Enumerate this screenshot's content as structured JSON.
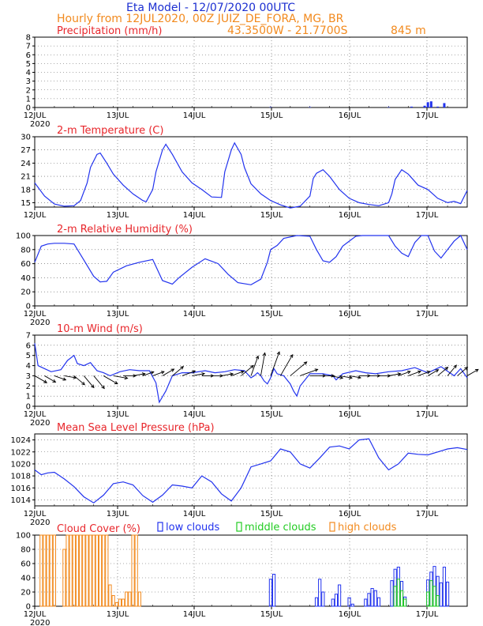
{
  "header": {
    "line1": "Eta Model - 12/07/2020 00UTC",
    "line2": "Hourly from 12JUL2020, 00Z  JUIZ_DE_FORA, MG, BR",
    "coords": "43.3500W - 21.7700S",
    "elevation": "845  m"
  },
  "colors": {
    "title_blue": "#1c2fd1",
    "header_orange": "#f28a1e",
    "panel_red": "#e8262b",
    "series_blue": "#2233ee",
    "low_cloud": "#2233ee",
    "mid_cloud": "#22cc22",
    "high_cloud": "#f28a1e"
  },
  "x_axis": {
    "day_labels": [
      "12JUL",
      "13JUL",
      "14JUL",
      "15JUL",
      "16JUL",
      "17JUL"
    ],
    "year_label": "2020",
    "hours_total": 132
  },
  "chart_data": [
    {
      "type": "bar",
      "title": "Precipitation (mm/h)",
      "ylim": [
        0,
        8
      ],
      "yticks": [
        0,
        1,
        2,
        3,
        4,
        5,
        6,
        7,
        8
      ],
      "x_hours": [
        72,
        84,
        108,
        115,
        119,
        120,
        121,
        123,
        125
      ],
      "values": [
        0.05,
        0.05,
        0.05,
        0.1,
        0.2,
        0.6,
        0.7,
        0.1,
        0.5
      ]
    },
    {
      "type": "line",
      "title": "2-m Temperature (C)",
      "ylim": [
        14,
        30
      ],
      "yticks": [
        15,
        18,
        21,
        24,
        27,
        30
      ],
      "x_hours": [
        0,
        3,
        6,
        9,
        12,
        14,
        16,
        17,
        19,
        20,
        22,
        24,
        27,
        30,
        33,
        34,
        36,
        37,
        39,
        40,
        42,
        45,
        48,
        51,
        54,
        57,
        58,
        60,
        61,
        63,
        64,
        66,
        69,
        72,
        75,
        78,
        81,
        84,
        85,
        86,
        88,
        90,
        93,
        96,
        99,
        102,
        105,
        108,
        109,
        110,
        112,
        114,
        117,
        120,
        123,
        126,
        128,
        130,
        132
      ],
      "values": [
        19.5,
        16.5,
        14.7,
        14.2,
        14.3,
        15.5,
        19.5,
        23,
        26,
        26.3,
        24,
        21.5,
        19,
        17,
        15.5,
        15.2,
        18,
        22,
        27,
        28.3,
        26,
        22,
        19.5,
        18,
        16.3,
        16.2,
        22,
        27,
        28.6,
        26,
        23,
        19.3,
        17,
        15.5,
        14.5,
        13.8,
        14.2,
        16.5,
        20.5,
        21.7,
        22.5,
        21,
        18,
        16,
        15,
        14.6,
        14.3,
        15,
        17,
        20.3,
        22.5,
        21.5,
        19,
        18,
        16,
        15,
        15.3,
        14.8,
        17.8
      ]
    },
    {
      "type": "line",
      "title": "2-m Relative Humidity (%)",
      "ylim": [
        0,
        100
      ],
      "yticks": [
        0,
        20,
        40,
        60,
        80,
        100
      ],
      "x_hours": [
        0,
        2,
        4,
        6,
        9,
        12,
        15,
        18,
        20,
        22,
        24,
        28,
        32,
        36,
        39,
        42,
        44,
        48,
        52,
        56,
        59,
        62,
        66,
        69,
        71,
        72,
        74,
        76,
        80,
        84,
        86,
        88,
        90,
        92,
        94,
        96,
        98,
        100,
        102,
        104,
        108,
        110,
        112,
        114,
        116,
        118,
        120,
        122,
        124,
        126,
        128,
        130,
        132
      ],
      "values": [
        62,
        85,
        88,
        89,
        89,
        88,
        65,
        42,
        34,
        35,
        48,
        57,
        62,
        66,
        36,
        31,
        40,
        55,
        67,
        60,
        45,
        33,
        30,
        38,
        62,
        80,
        86,
        96,
        100,
        99,
        80,
        64,
        62,
        70,
        85,
        92,
        99,
        100,
        100,
        100,
        100,
        85,
        75,
        70,
        90,
        100,
        100,
        78,
        68,
        80,
        92,
        100,
        80
      ]
    },
    {
      "type": "line",
      "title": "10-m Wind (m/s)",
      "ylim": [
        0,
        7
      ],
      "yticks": [
        0,
        1,
        2,
        3,
        4,
        5,
        6,
        7
      ],
      "x_hours": [
        0,
        1,
        3,
        5,
        8,
        10,
        12,
        13,
        15,
        17,
        19,
        21,
        23,
        26,
        29,
        32,
        35,
        37,
        38,
        40,
        42,
        45,
        48,
        52,
        55,
        58,
        61,
        64,
        66,
        67,
        68,
        69,
        70,
        71,
        72,
        73,
        74,
        76,
        78,
        79,
        80,
        81,
        84,
        88,
        91,
        92,
        94,
        98,
        101,
        104,
        108,
        112,
        116,
        120,
        124,
        128,
        130,
        132
      ],
      "values": [
        6.2,
        4,
        3.7,
        3.4,
        3.6,
        4.5,
        5.0,
        4.2,
        4.0,
        4.3,
        3.5,
        3.3,
        3.0,
        3.4,
        3.6,
        3.5,
        3.5,
        2.3,
        0.4,
        1.5,
        3.0,
        3.3,
        3.3,
        3.5,
        3.3,
        3.4,
        3.6,
        3.5,
        2.8,
        3.0,
        3.3,
        3.0,
        2.5,
        2.2,
        2.8,
        3.7,
        3.2,
        3.0,
        2.2,
        1.5,
        1.0,
        2.0,
        3.2,
        3.2,
        3.0,
        2.6,
        3.2,
        3.5,
        3.3,
        3.2,
        3.4,
        3.5,
        3.8,
        3.3,
        3.9,
        3.0,
        3.7,
        2.8
      ],
      "barbs": {
        "x_hours": [
          0,
          3,
          6,
          9,
          12,
          15,
          18,
          21,
          24,
          27,
          30,
          33,
          36,
          39,
          42,
          45,
          48,
          51,
          54,
          57,
          60,
          63,
          66,
          69,
          72,
          75,
          78,
          81,
          84,
          87,
          90,
          93,
          96,
          99,
          102,
          105,
          108,
          111,
          114,
          117,
          120,
          123,
          126,
          129,
          132
        ],
        "speeds": [
          2.5,
          2.3,
          2.2,
          2.2,
          2.5,
          2.8,
          3.0,
          2.9,
          2.6,
          2.3,
          2.2,
          2.1,
          2.2,
          2.4,
          2.6,
          2.5,
          2.3,
          2.1,
          2.0,
          2.1,
          2.4,
          2.9,
          3.8,
          4.2,
          4.6,
          4.4,
          3.9,
          3.4,
          2.8,
          2.6,
          2.4,
          2.3,
          2.1,
          2.0,
          2.0,
          2.1,
          2.2,
          2.3,
          2.4,
          2.3,
          2.2,
          2.4,
          2.5,
          2.4,
          2.3
        ],
        "directions_deg": [
          300,
          300,
          290,
          280,
          310,
          320,
          320,
          300,
          280,
          270,
          260,
          250,
          250,
          240,
          230,
          250,
          260,
          270,
          270,
          260,
          250,
          230,
          200,
          190,
          200,
          210,
          230,
          250,
          270,
          270,
          280,
          280,
          280,
          270,
          270,
          270,
          260,
          250,
          250,
          250,
          240,
          230,
          220,
          230,
          240
        ]
      }
    },
    {
      "type": "line",
      "title": "Mean Sea Level Pressure (hPa)",
      "ylim": [
        1013,
        1025
      ],
      "yticks": [
        1014,
        1016,
        1018,
        1020,
        1022,
        1024
      ],
      "x_hours": [
        0,
        2,
        4,
        6,
        9,
        12,
        15,
        18,
        21,
        24,
        27,
        30,
        33,
        36,
        39,
        42,
        45,
        48,
        51,
        54,
        57,
        60,
        63,
        66,
        69,
        72,
        75,
        78,
        81,
        84,
        87,
        90,
        93,
        96,
        99,
        102,
        105,
        108,
        111,
        114,
        117,
        120,
        123,
        126,
        129,
        132
      ],
      "values": [
        1019,
        1018.2,
        1018.5,
        1018.6,
        1017.5,
        1016.2,
        1014.5,
        1013.5,
        1014.8,
        1016.7,
        1017.0,
        1016.5,
        1014.7,
        1013.6,
        1014.8,
        1016.5,
        1016.3,
        1016.0,
        1018.0,
        1017.0,
        1015.0,
        1013.8,
        1016.0,
        1019.5,
        1020.0,
        1020.5,
        1022.5,
        1022.0,
        1020.0,
        1019.3,
        1021.0,
        1022.8,
        1023.0,
        1022.5,
        1024.0,
        1024.2,
        1021.0,
        1019.0,
        1020.0,
        1021.8,
        1021.6,
        1021.5,
        1022.0,
        1022.5,
        1022.7,
        1022.4
      ]
    },
    {
      "type": "bar",
      "title": "Cloud Cover (%)",
      "ylim": [
        0,
        100
      ],
      "yticks": [
        0,
        20,
        40,
        60,
        80,
        100
      ],
      "legend": [
        "low clouds",
        "middle clouds",
        "high clouds"
      ],
      "series": [
        {
          "name": "low clouds",
          "x_hours": [
            72,
            73,
            86,
            87,
            88,
            91,
            92,
            93,
            96,
            97,
            101,
            102,
            103,
            104,
            105,
            109,
            110,
            111,
            112,
            113,
            120,
            121,
            122,
            123,
            124,
            125,
            126
          ],
          "values": [
            38,
            45,
            12,
            38,
            20,
            10,
            17,
            30,
            12,
            3,
            10,
            18,
            25,
            22,
            12,
            36,
            52,
            55,
            35,
            13,
            37,
            48,
            56,
            42,
            33,
            55,
            34
          ]
        },
        {
          "name": "middle clouds",
          "x_hours": [
            110,
            111,
            112,
            113,
            120,
            121,
            122,
            123
          ],
          "values": [
            28,
            38,
            22,
            10,
            20,
            36,
            28,
            15
          ]
        },
        {
          "name": "high clouds",
          "x_hours": [
            2,
            3,
            4,
            5,
            6,
            9,
            10,
            11,
            12,
            13,
            14,
            15,
            16,
            17,
            18,
            19,
            20,
            21,
            22,
            23,
            24,
            25,
            26,
            27,
            28,
            29,
            30,
            31,
            32
          ],
          "values": [
            100,
            100,
            100,
            100,
            100,
            80,
            100,
            100,
            100,
            100,
            100,
            100,
            100,
            100,
            100,
            100,
            100,
            100,
            100,
            30,
            15,
            5,
            10,
            10,
            20,
            20,
            100,
            100,
            20
          ]
        }
      ]
    }
  ]
}
